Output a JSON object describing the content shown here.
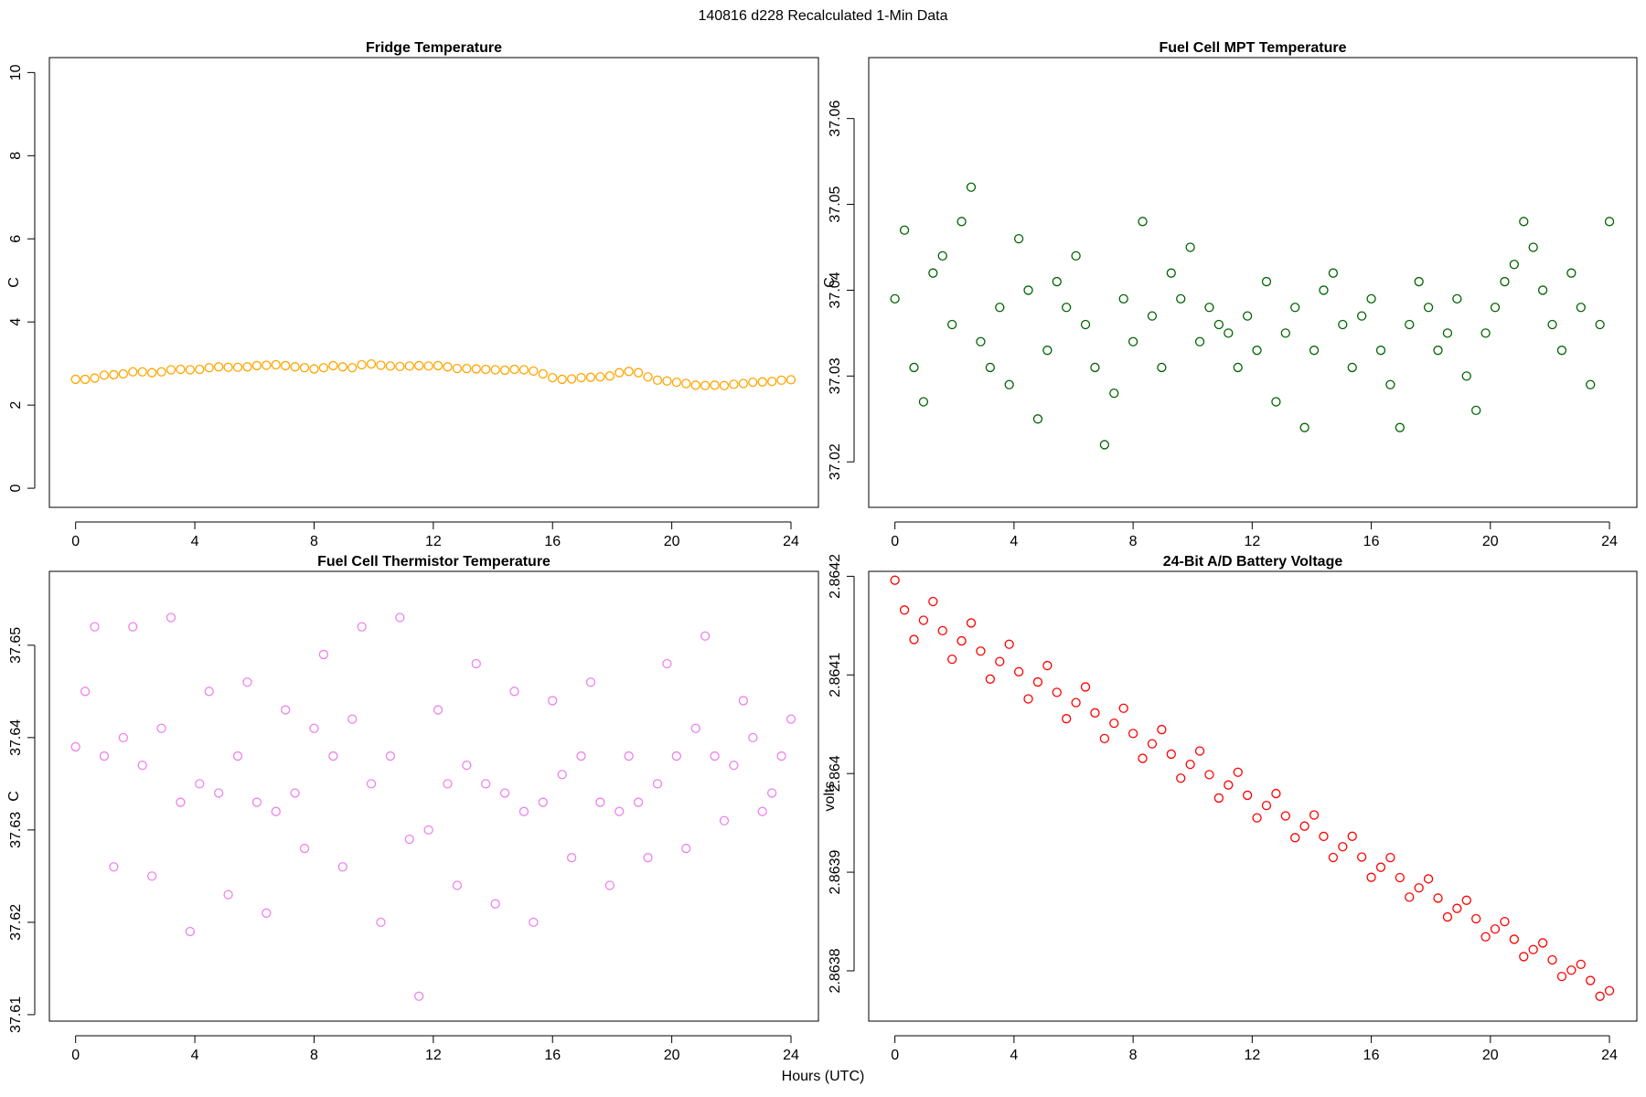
{
  "title": "140816   d228   Recalculated 1-Min Data",
  "xlabel": "Hours (UTC)",
  "chart_data": [
    {
      "type": "scatter",
      "title": "Fridge Temperature",
      "ylabel": "C",
      "color": "#ffa500",
      "xlim": [
        -0.88,
        24.92
      ],
      "xticks": [
        0,
        4,
        8,
        12,
        16,
        20,
        24
      ],
      "ylim": [
        -0.46,
        10.36
      ],
      "yticks": [
        0,
        2,
        4,
        6,
        8,
        10
      ],
      "x": [
        0,
        0.32,
        0.64,
        0.96,
        1.28,
        1.6,
        1.92,
        2.24,
        2.56,
        2.88,
        3.2,
        3.52,
        3.84,
        4.16,
        4.48,
        4.8,
        5.12,
        5.44,
        5.76,
        6.08,
        6.4,
        6.72,
        7.04,
        7.36,
        7.68,
        8,
        8.32,
        8.64,
        8.96,
        9.28,
        9.6,
        9.92,
        10.24,
        10.56,
        10.88,
        11.2,
        11.52,
        11.84,
        12.16,
        12.48,
        12.8,
        13.12,
        13.44,
        13.76,
        14.08,
        14.4,
        14.72,
        15.04,
        15.36,
        15.68,
        16,
        16.32,
        16.64,
        16.96,
        17.28,
        17.6,
        17.92,
        18.24,
        18.56,
        18.88,
        19.2,
        19.52,
        19.84,
        20.16,
        20.48,
        20.8,
        21.12,
        21.44,
        21.76,
        22.08,
        22.4,
        22.72,
        23.04,
        23.36,
        23.68,
        24
      ],
      "values": [
        2.62,
        2.62,
        2.65,
        2.72,
        2.73,
        2.75,
        2.8,
        2.8,
        2.78,
        2.8,
        2.85,
        2.86,
        2.85,
        2.86,
        2.9,
        2.92,
        2.91,
        2.91,
        2.92,
        2.95,
        2.96,
        2.97,
        2.95,
        2.92,
        2.9,
        2.87,
        2.9,
        2.95,
        2.92,
        2.9,
        2.97,
        2.99,
        2.96,
        2.94,
        2.93,
        2.94,
        2.95,
        2.94,
        2.95,
        2.92,
        2.88,
        2.88,
        2.87,
        2.86,
        2.85,
        2.84,
        2.86,
        2.85,
        2.82,
        2.75,
        2.66,
        2.62,
        2.63,
        2.66,
        2.67,
        2.68,
        2.7,
        2.78,
        2.81,
        2.78,
        2.68,
        2.6,
        2.58,
        2.55,
        2.52,
        2.48,
        2.47,
        2.48,
        2.47,
        2.5,
        2.52,
        2.55,
        2.56,
        2.57,
        2.6,
        2.61
      ]
    },
    {
      "type": "scatter",
      "title": "Fuel Cell MPT Temperature",
      "ylabel": "C",
      "color": "#006400",
      "xlim": [
        -0.88,
        24.92
      ],
      "xticks": [
        0,
        4,
        8,
        12,
        16,
        20,
        24
      ],
      "ylim": [
        37.0147,
        37.0671
      ],
      "yticks": [
        37.02,
        37.03,
        37.04,
        37.05,
        37.06
      ],
      "x": [
        0,
        0.32,
        0.64,
        0.96,
        1.28,
        1.6,
        1.92,
        2.24,
        2.56,
        2.88,
        3.2,
        3.52,
        3.84,
        4.16,
        4.48,
        4.8,
        5.12,
        5.44,
        5.76,
        6.08,
        6.4,
        6.72,
        7.04,
        7.36,
        7.68,
        8,
        8.32,
        8.64,
        8.96,
        9.28,
        9.6,
        9.92,
        10.24,
        10.56,
        10.88,
        11.2,
        11.52,
        11.84,
        12.16,
        12.48,
        12.8,
        13.12,
        13.44,
        13.76,
        14.08,
        14.4,
        14.72,
        15.04,
        15.36,
        15.68,
        16,
        16.32,
        16.64,
        16.96,
        17.28,
        17.6,
        17.92,
        18.24,
        18.56,
        18.88,
        19.2,
        19.52,
        19.84,
        20.16,
        20.48,
        20.8,
        21.12,
        21.44,
        21.76,
        22.08,
        22.4,
        22.72,
        23.04,
        23.36,
        23.68,
        24
      ],
      "values": [
        37.039,
        37.047,
        37.031,
        37.027,
        37.042,
        37.044,
        37.036,
        37.048,
        37.052,
        37.034,
        37.031,
        37.038,
        37.029,
        37.046,
        37.04,
        37.025,
        37.033,
        37.041,
        37.038,
        37.044,
        37.036,
        37.031,
        37.022,
        37.028,
        37.039,
        37.034,
        37.048,
        37.037,
        37.031,
        37.042,
        37.039,
        37.045,
        37.034,
        37.038,
        37.036,
        37.035,
        37.031,
        37.037,
        37.033,
        37.041,
        37.027,
        37.035,
        37.038,
        37.024,
        37.033,
        37.04,
        37.042,
        37.036,
        37.031,
        37.037,
        37.039,
        37.033,
        37.029,
        37.024,
        37.036,
        37.041,
        37.038,
        37.033,
        37.035,
        37.039,
        37.03,
        37.026,
        37.035,
        37.038,
        37.041,
        37.043,
        37.048,
        37.045,
        37.04,
        37.036,
        37.033,
        37.042,
        37.038,
        37.029,
        37.036,
        37.048
      ]
    },
    {
      "type": "scatter",
      "title": "Fuel Cell Thermistor Temperature",
      "ylabel": "C",
      "color": "#ee82ee",
      "xlim": [
        -0.88,
        24.92
      ],
      "xticks": [
        0,
        4,
        8,
        12,
        16,
        20,
        24
      ],
      "ylim": [
        37.6093,
        37.658
      ],
      "yticks": [
        37.61,
        37.62,
        37.63,
        37.64,
        37.65
      ],
      "x": [
        0,
        0.32,
        0.64,
        0.96,
        1.28,
        1.6,
        1.92,
        2.24,
        2.56,
        2.88,
        3.2,
        3.52,
        3.84,
        4.16,
        4.48,
        4.8,
        5.12,
        5.44,
        5.76,
        6.08,
        6.4,
        6.72,
        7.04,
        7.36,
        7.68,
        8,
        8.32,
        8.64,
        8.96,
        9.28,
        9.6,
        9.92,
        10.24,
        10.56,
        10.88,
        11.2,
        11.52,
        11.84,
        12.16,
        12.48,
        12.8,
        13.12,
        13.44,
        13.76,
        14.08,
        14.4,
        14.72,
        15.04,
        15.36,
        15.68,
        16,
        16.32,
        16.64,
        16.96,
        17.28,
        17.6,
        17.92,
        18.24,
        18.56,
        18.88,
        19.2,
        19.52,
        19.84,
        20.16,
        20.48,
        20.8,
        21.12,
        21.44,
        21.76,
        22.08,
        22.4,
        22.72,
        23.04,
        23.36,
        23.68,
        24
      ],
      "values": [
        37.639,
        37.645,
        37.652,
        37.638,
        37.626,
        37.64,
        37.652,
        37.637,
        37.625,
        37.641,
        37.653,
        37.633,
        37.619,
        37.635,
        37.645,
        37.634,
        37.623,
        37.638,
        37.646,
        37.633,
        37.621,
        37.632,
        37.643,
        37.634,
        37.628,
        37.641,
        37.649,
        37.638,
        37.626,
        37.642,
        37.652,
        37.635,
        37.62,
        37.638,
        37.653,
        37.629,
        37.612,
        37.63,
        37.643,
        37.635,
        37.624,
        37.637,
        37.648,
        37.635,
        37.622,
        37.634,
        37.645,
        37.632,
        37.62,
        37.633,
        37.644,
        37.636,
        37.627,
        37.638,
        37.646,
        37.633,
        37.624,
        37.632,
        37.638,
        37.633,
        37.627,
        37.635,
        37.648,
        37.638,
        37.628,
        37.641,
        37.651,
        37.638,
        37.631,
        37.637,
        37.644,
        37.64,
        37.632,
        37.634,
        37.638,
        37.642
      ]
    },
    {
      "type": "scatter",
      "title": "24-Bit A/D Battery Voltage",
      "ylabel": "volts",
      "color": "#ff0000",
      "xlim": [
        -0.88,
        24.92
      ],
      "xticks": [
        0,
        4,
        8,
        12,
        16,
        20,
        24
      ],
      "ylim": [
        2.863749,
        2.864205
      ],
      "yticks": [
        2.8638,
        2.8639,
        2.864,
        2.8641,
        2.8642
      ],
      "x": [
        0,
        0.32,
        0.64,
        0.96,
        1.28,
        1.6,
        1.92,
        2.24,
        2.56,
        2.88,
        3.2,
        3.52,
        3.84,
        4.16,
        4.48,
        4.8,
        5.12,
        5.44,
        5.76,
        6.08,
        6.4,
        6.72,
        7.04,
        7.36,
        7.68,
        8,
        8.32,
        8.64,
        8.96,
        9.28,
        9.6,
        9.92,
        10.24,
        10.56,
        10.88,
        11.2,
        11.52,
        11.84,
        12.16,
        12.48,
        12.8,
        13.12,
        13.44,
        13.76,
        14.08,
        14.4,
        14.72,
        15.04,
        15.36,
        15.68,
        16,
        16.32,
        16.64,
        16.96,
        17.28,
        17.6,
        17.92,
        18.24,
        18.56,
        18.88,
        19.2,
        19.52,
        19.84,
        20.16,
        20.48,
        20.8,
        21.12,
        21.44,
        21.76,
        22.08,
        22.4,
        22.72,
        23.04,
        23.36,
        23.68,
        24
      ],
      "values": [
        2.864196,
        2.8641658,
        2.8641359,
        2.8641554,
        2.8641744,
        2.8641449,
        2.8641159,
        2.8641345,
        2.8641527,
        2.8641241,
        2.8640958,
        2.8641136,
        2.8641311,
        2.8641032,
        2.8640757,
        2.8640928,
        2.8641095,
        2.8640823,
        2.8640556,
        2.8640719,
        2.8640878,
        2.8640615,
        2.8640355,
        2.864051,
        2.8640662,
        2.8640406,
        2.8640154,
        2.8640302,
        2.8640446,
        2.8640197,
        2.8639953,
        2.8640093,
        2.8640229,
        2.8639989,
        2.8639752,
        2.8639884,
        2.8640013,
        2.863978,
        2.8639551,
        2.8639676,
        2.8639797,
        2.8639571,
        2.863935,
        2.8639467,
        2.863958,
        2.8639363,
        2.8639149,
        2.8639258,
        2.8639364,
        2.8639154,
        2.8638948,
        2.863905,
        2.8639148,
        2.8638945,
        2.8638747,
        2.8638841,
        2.8638932,
        2.8638737,
        2.8638546,
        2.8638633,
        2.8638715,
        2.8638528,
        2.8638345,
        2.8638424,
        2.8638499,
        2.863832,
        2.8638144,
        2.8638215,
        2.8638283,
        2.8638111,
        2.8637943,
        2.8638007,
        2.8638066,
        2.8637902,
        2.8637742,
        2.8637798
      ]
    }
  ]
}
